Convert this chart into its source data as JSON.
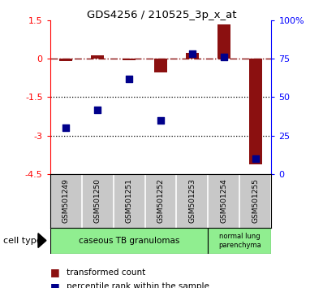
{
  "title": "GDS4256 / 210525_3p_x_at",
  "samples": [
    "GSM501249",
    "GSM501250",
    "GSM501251",
    "GSM501252",
    "GSM501253",
    "GSM501254",
    "GSM501255"
  ],
  "transformed_count": [
    -0.1,
    0.12,
    -0.05,
    -0.55,
    0.22,
    1.35,
    -4.1
  ],
  "percentile_rank": [
    30,
    42,
    62,
    35,
    78,
    76,
    10
  ],
  "ylim_left": [
    -4.5,
    1.5
  ],
  "ylim_right": [
    0,
    100
  ],
  "yticks_left": [
    1.5,
    0,
    -1.5,
    -3.0,
    -4.5
  ],
  "ytick_labels_left": [
    "1.5",
    "0",
    "-1.5",
    "-3",
    "-4.5"
  ],
  "yticks_right": [
    100,
    75,
    50,
    25,
    0
  ],
  "ytick_labels_right": [
    "100%",
    "75",
    "50",
    "25",
    "0"
  ],
  "hlines": [
    -1.5,
    -3.0
  ],
  "bar_color": "#8B1010",
  "dot_color": "#00008B",
  "bar_width": 0.4,
  "dot_size": 28,
  "legend_bar_label": "transformed count",
  "legend_dot_label": "percentile rank within the sample",
  "cell_type_label": "cell type",
  "tick_area_color": "#c8c8c8",
  "green_color": "#90EE90",
  "group1_samples": 5,
  "group1_label": "caseous TB granulomas",
  "group2_label": "normal lung\nparenchyma"
}
